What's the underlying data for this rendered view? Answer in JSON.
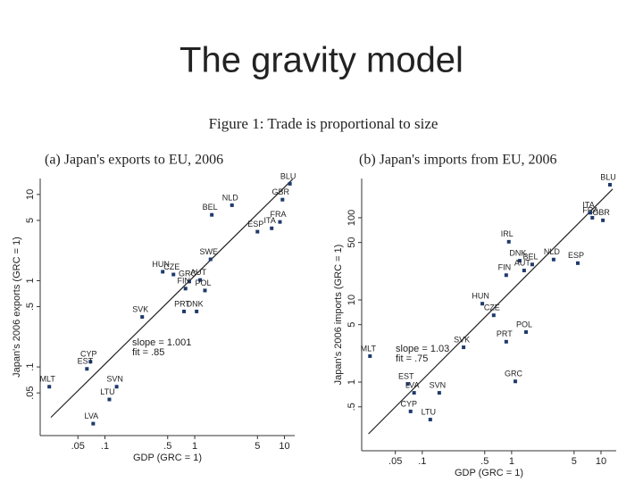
{
  "title": "The gravity model",
  "figure_caption": "Figure 1: Trade is proportional to size",
  "chart_data": [
    {
      "type": "scatter",
      "title": "(a) Japan's exports to EU, 2006",
      "xlabel": "GDP (GRC = 1)",
      "ylabel": "Japan's 2006 exports (GRC = 1)",
      "xscale": "log",
      "yscale": "log",
      "color": "#1f3a6b",
      "xlim": [
        0.019,
        13
      ],
      "ylim": [
        0.016,
        15.3
      ],
      "xticks": [
        {
          "value": 0.05,
          "label": ".05"
        },
        {
          "value": 0.1,
          "label": ".1"
        },
        {
          "value": 0.5,
          "label": ".5"
        },
        1,
        5,
        10
      ],
      "yticks": [
        {
          "value": 0.05,
          "label": ".05"
        },
        {
          "value": 0.1,
          "label": ".1"
        },
        {
          "value": 0.5,
          "label": ".5"
        },
        1,
        5,
        10
      ],
      "point_labels": [
        "BLU",
        "GBR",
        "NLD",
        "BEL",
        "FRA",
        "ITA",
        "ESP",
        "SWE",
        "HUN",
        "CZE",
        "GRC",
        "AUT",
        "FIN",
        "PRT",
        "DNK",
        "POL",
        "SVK",
        "CYP",
        "EST",
        "MLT",
        "SVN",
        "LTU",
        "LVA"
      ],
      "x": [
        11.5,
        9.5,
        2.6,
        1.55,
        8.9,
        7.2,
        5.0,
        1.5,
        0.44,
        0.58,
        0.87,
        1.15,
        0.79,
        0.76,
        1.05,
        1.3,
        0.26,
        0.069,
        0.063,
        0.024,
        0.135,
        0.112,
        0.074
      ],
      "y": [
        13.3,
        8.7,
        7.5,
        5.8,
        4.8,
        4.05,
        3.7,
        1.77,
        1.27,
        1.18,
        0.98,
        1.02,
        0.81,
        0.44,
        0.44,
        0.77,
        0.38,
        0.115,
        0.095,
        0.059,
        0.059,
        0.042,
        0.022
      ],
      "fit_line": {
        "x": [
          0.025,
          12.3
        ],
        "y": [
          0.026,
          15
        ]
      },
      "annotations": [
        "slope = 1.001",
        "fit = .85"
      ]
    },
    {
      "type": "scatter",
      "title": "(b) Japan's imports from EU, 2006",
      "xlabel": "GDP (GRC = 1)",
      "ylabel": "Japan's 2006 imports (GRC = 1)",
      "xscale": "log",
      "yscale": "log",
      "color": "#1f3a6b",
      "xlim": [
        0.021,
        14.8
      ],
      "ylim": [
        0.146,
        300
      ],
      "xticks": [
        {
          "value": 0.05,
          "label": ".05"
        },
        {
          "value": 0.1,
          "label": ".1"
        },
        {
          "value": 0.5,
          "label": ".5"
        },
        1,
        5,
        10
      ],
      "yticks": [
        {
          "value": 0.5,
          "label": ".5"
        },
        1,
        5,
        10,
        50,
        100
      ],
      "point_labels": [
        "BLU",
        "FRA",
        "ITA",
        "GBR",
        "IRL",
        "DNK",
        "AUT",
        "BEL",
        "NLD",
        "ESP",
        "FIN",
        "HUN",
        "CZE",
        "POL",
        "PRT",
        "SVK",
        "MLT",
        "EST",
        "GRC",
        "LVA",
        "SVN",
        "CYP",
        "LTU"
      ],
      "x": [
        12.6,
        8.0,
        7.6,
        10.5,
        0.93,
        1.23,
        1.38,
        1.7,
        2.95,
        5.5,
        0.87,
        0.47,
        0.63,
        1.45,
        0.87,
        0.29,
        0.026,
        0.069,
        1.1,
        0.081,
        0.155,
        0.074,
        0.123
      ],
      "y": [
        252,
        100,
        115,
        93,
        51,
        30,
        22.8,
        27,
        31,
        28,
        20,
        9.0,
        6.5,
        4.06,
        3.1,
        2.65,
        2.07,
        0.95,
        1.02,
        0.74,
        0.74,
        0.44,
        0.35
      ],
      "fit_line": {
        "x": [
          0.025,
          13.5
        ],
        "y": [
          0.234,
          223
        ]
      },
      "annotations": [
        "slope = 1.03",
        "fit = .75"
      ]
    }
  ]
}
